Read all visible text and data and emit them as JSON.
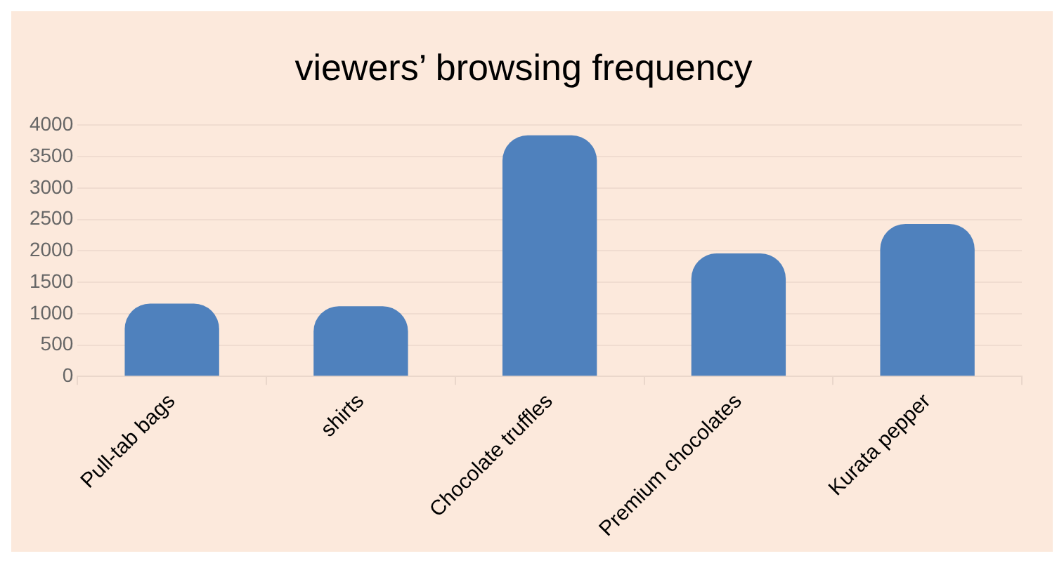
{
  "chart_data": {
    "type": "bar",
    "title": "viewers’ browsing frequency",
    "categories": [
      "Pull-tab bags",
      "shirts",
      "Chocolate truffles",
      "Premium chocolates",
      "Kurata pepper"
    ],
    "values": [
      1160,
      1120,
      3840,
      1960,
      2430
    ],
    "color": "#4f81bd",
    "ylim": [
      0,
      4000
    ],
    "yticks": [
      0,
      500,
      1000,
      1500,
      2000,
      2500,
      3000,
      3500,
      4000
    ],
    "grid": "y",
    "legend": false
  }
}
